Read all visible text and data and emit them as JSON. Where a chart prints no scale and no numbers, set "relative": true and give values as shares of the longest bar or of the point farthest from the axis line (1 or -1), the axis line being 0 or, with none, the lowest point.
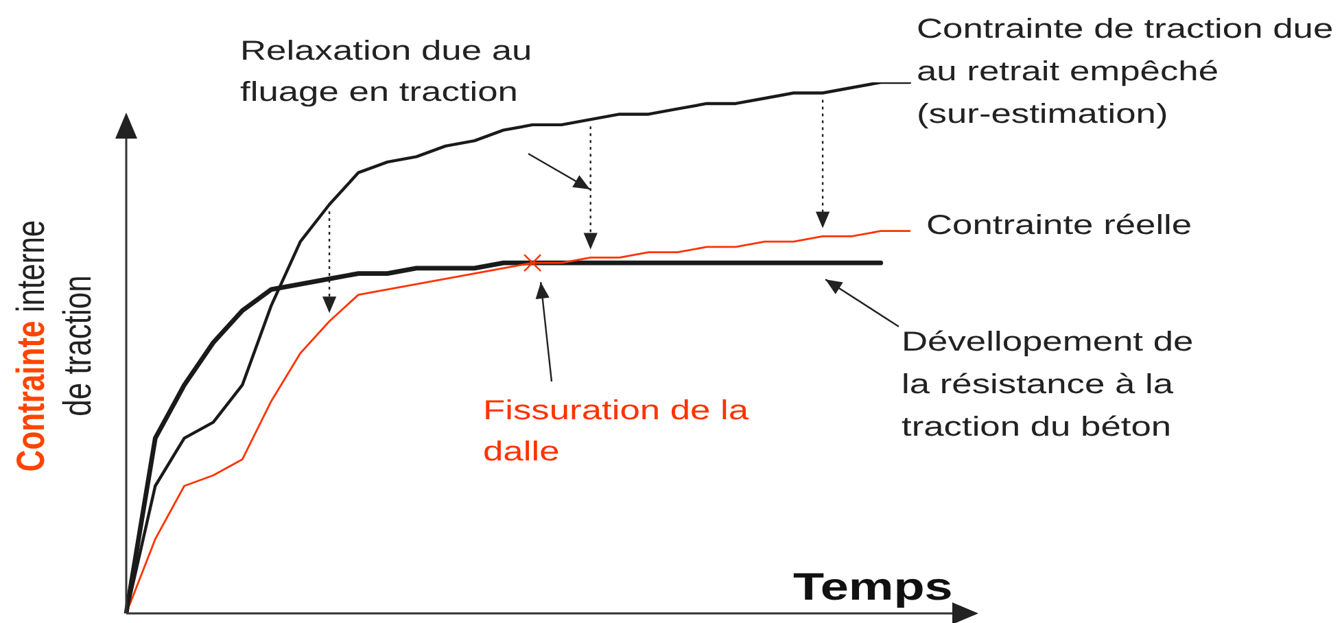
{
  "chart_data": {
    "type": "line",
    "relative": true,
    "xlabel": "Temps",
    "ylabel": "Contrainte interne de traction",
    "legend": false,
    "marker": "none",
    "categories": [
      null,
      null,
      null,
      null,
      null,
      null,
      null,
      null,
      null,
      null,
      null,
      null,
      null,
      null,
      null,
      null,
      null,
      null,
      null,
      null,
      null,
      null,
      null,
      null,
      null,
      null,
      null,
      null
    ],
    "series": [
      {
        "name": "Contrainte de traction due au retrait empêché (sur-estimation)",
        "color": "#1a1a1a",
        "values": [
          0,
          0.24,
          0.33,
          0.36,
          0.43,
          0.58,
          0.7,
          0.77,
          0.83,
          0.85,
          0.86,
          0.88,
          0.89,
          0.91,
          0.92,
          0.92,
          0.93,
          0.94,
          0.94,
          0.95,
          0.96,
          0.96,
          0.97,
          0.98,
          0.98,
          0.99,
          1,
          1
        ]
      },
      {
        "name": "Contrainte réelle",
        "color": "#ff3300",
        "values": [
          0,
          0.14,
          0.24,
          0.26,
          0.29,
          0.4,
          0.49,
          0.55,
          0.6,
          0.61,
          0.62,
          0.63,
          0.64,
          0.65,
          0.66,
          0.66,
          0.67,
          0.67,
          0.68,
          0.68,
          0.69,
          0.69,
          0.7,
          0.7,
          0.71,
          0.71,
          0.72,
          0.72
        ]
      },
      {
        "name": "Dévellopement de la résistance à la traction du béton",
        "color": "#1a1a1a",
        "values": [
          0,
          0.33,
          0.43,
          0.51,
          0.57,
          0.61,
          0.62,
          0.63,
          0.64,
          0.64,
          0.65,
          0.65,
          0.65,
          0.66,
          0.66,
          0.66,
          0.66,
          0.66,
          0.66,
          0.66,
          0.66,
          0.66,
          0.66,
          0.66,
          0.66,
          0.66,
          0.66,
          null
        ]
      }
    ],
    "annotations": [
      "Relaxation due au fluage en traction",
      "Fissuration de la dalle"
    ]
  }
}
